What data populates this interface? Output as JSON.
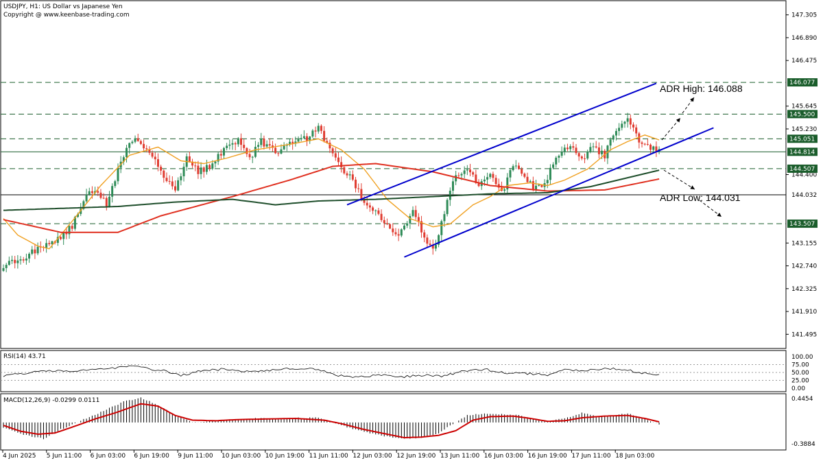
{
  "header": {
    "title": "USDJPY, H1:  US Dollar vs Japanese Yen",
    "copyright": "Copyright @ www.keenbase-trading.com"
  },
  "colors": {
    "bull": "#2e8b57",
    "bear": "#e03c31",
    "ema20": "#f0a020",
    "ema100": "#e03020",
    "ema200": "#1d4d2a",
    "channel": "#0000cc",
    "level": "#1a5d2b",
    "tag_bg": "#1a5d2b",
    "rsi": "#000000",
    "macd_signal": "#cc0000"
  },
  "chart_data": [
    {
      "type": "candlestick",
      "title": "USDJPY, H1:  US Dollar vs Japanese Yen",
      "ylim": [
        141.25,
        147.55
      ],
      "yticks": [
        147.305,
        146.89,
        146.475,
        145.645,
        145.23,
        144.4,
        143.155,
        142.74,
        142.325,
        141.91,
        141.495
      ],
      "x_labels": [
        "4 Jun 2025",
        "5 Jun 11:00",
        "6 Jun 03:00",
        "6 Jun 19:00",
        "9 Jun 11:00",
        "10 Jun 03:00",
        "10 Jun 19:00",
        "11 Jun 11:00",
        "12 Jun 03:00",
        "12 Jun 19:00",
        "13 Jun 11:00",
        "16 Jun 03:00",
        "16 Jun 19:00",
        "17 Jun 11:00",
        "18 Jun 03:00"
      ],
      "close_anchors": [
        [
          0,
          142.75
        ],
        [
          6,
          142.85
        ],
        [
          12,
          143.05
        ],
        [
          18,
          143.2
        ],
        [
          24,
          143.45
        ],
        [
          28,
          143.95
        ],
        [
          32,
          144.15
        ],
        [
          36,
          143.85
        ],
        [
          40,
          144.5
        ],
        [
          45,
          145.05
        ],
        [
          50,
          144.9
        ],
        [
          55,
          144.45
        ],
        [
          60,
          144.15
        ],
        [
          64,
          144.7
        ],
        [
          68,
          144.45
        ],
        [
          72,
          144.55
        ],
        [
          76,
          144.8
        ],
        [
          82,
          145.05
        ],
        [
          86,
          144.7
        ],
        [
          90,
          145.0
        ],
        [
          96,
          144.75
        ],
        [
          100,
          145.0
        ],
        [
          106,
          145.05
        ],
        [
          110,
          145.25
        ],
        [
          116,
          144.65
        ],
        [
          121,
          144.35
        ],
        [
          126,
          143.9
        ],
        [
          132,
          143.6
        ],
        [
          138,
          143.3
        ],
        [
          143,
          143.7
        ],
        [
          147,
          143.3
        ],
        [
          150,
          143.0
        ],
        [
          153,
          143.5
        ],
        [
          157,
          144.3
        ],
        [
          162,
          144.55
        ],
        [
          166,
          144.15
        ],
        [
          170,
          144.45
        ],
        [
          174,
          144.05
        ],
        [
          178,
          144.6
        ],
        [
          182,
          144.3
        ],
        [
          186,
          144.15
        ],
        [
          189,
          144.2
        ],
        [
          193,
          144.75
        ],
        [
          198,
          144.95
        ],
        [
          202,
          144.7
        ],
        [
          206,
          144.9
        ],
        [
          210,
          144.75
        ],
        [
          214,
          145.25
        ],
        [
          218,
          145.4
        ],
        [
          222,
          145.0
        ],
        [
          226,
          144.9
        ],
        [
          229,
          144.85
        ]
      ],
      "levels": [
        {
          "value": 146.077,
          "label": "146.077",
          "style": "dashed",
          "tag": true
        },
        {
          "value": 145.5,
          "label": "145.500",
          "style": "dashed",
          "tag": true
        },
        {
          "value": 145.051,
          "label": "145.051",
          "style": "dashed",
          "tag": true
        },
        {
          "value": 144.814,
          "label": "144.814",
          "style": "solid",
          "tag": true
        },
        {
          "value": 144.507,
          "label": "144.507",
          "style": "dashed",
          "tag": true
        },
        {
          "value": 144.032,
          "label": "144.032",
          "style": "solid-dark",
          "tag": false
        },
        {
          "value": 143.507,
          "label": "143.507",
          "style": "dashed",
          "tag": true
        }
      ],
      "channel": {
        "upper": [
          [
            120,
            143.85
          ],
          [
            228,
            146.06
          ]
        ],
        "lower": [
          [
            140,
            142.9
          ],
          [
            248,
            145.25
          ]
        ],
        "mid_ext": [
          [
            213,
            144.35
          ],
          [
            228,
            144.65
          ]
        ]
      },
      "moving_averages": [
        {
          "name": "ema20",
          "anchors": [
            [
              0,
              143.6
            ],
            [
              5,
              143.3
            ],
            [
              12,
              143.1
            ],
            [
              16,
              143.05
            ],
            [
              24,
              143.55
            ],
            [
              34,
              144.2
            ],
            [
              44,
              144.75
            ],
            [
              54,
              144.9
            ],
            [
              62,
              144.65
            ],
            [
              70,
              144.6
            ],
            [
              78,
              144.7
            ],
            [
              88,
              144.85
            ],
            [
              100,
              144.95
            ],
            [
              110,
              145.05
            ],
            [
              118,
              144.85
            ],
            [
              126,
              144.5
            ],
            [
              134,
              143.95
            ],
            [
              142,
              143.6
            ],
            [
              150,
              143.45
            ],
            [
              156,
              143.5
            ],
            [
              164,
              143.85
            ],
            [
              170,
              144.0
            ],
            [
              176,
              144.2
            ],
            [
              184,
              144.25
            ],
            [
              190,
              144.2
            ],
            [
              196,
              144.3
            ],
            [
              204,
              144.5
            ],
            [
              212,
              144.85
            ],
            [
              218,
              145.0
            ],
            [
              224,
              145.12
            ],
            [
              229,
              145.03
            ]
          ]
        },
        {
          "name": "ema100",
          "anchors": [
            [
              0,
              143.58
            ],
            [
              20,
              143.35
            ],
            [
              40,
              143.35
            ],
            [
              55,
              143.65
            ],
            [
              80,
              144.0
            ],
            [
              100,
              144.3
            ],
            [
              115,
              144.55
            ],
            [
              130,
              144.6
            ],
            [
              150,
              144.45
            ],
            [
              170,
              144.2
            ],
            [
              190,
              144.1
            ],
            [
              210,
              144.12
            ],
            [
              229,
              144.32
            ]
          ]
        },
        {
          "name": "ema200",
          "anchors": [
            [
              0,
              143.75
            ],
            [
              40,
              143.82
            ],
            [
              60,
              143.9
            ],
            [
              80,
              143.95
            ],
            [
              95,
              143.85
            ],
            [
              110,
              143.92
            ],
            [
              130,
              143.95
            ],
            [
              150,
              144.0
            ],
            [
              170,
              144.05
            ],
            [
              190,
              144.07
            ],
            [
              205,
              144.18
            ],
            [
              229,
              144.48
            ]
          ]
        }
      ],
      "annotations": [
        {
          "text": "ADR High: 146.088",
          "value": 146.088
        },
        {
          "text": "ADR Low: 144.031",
          "value": 144.031
        }
      ]
    },
    {
      "type": "line",
      "title": "RSI(14) 43.71",
      "ylim": [
        0,
        100
      ],
      "yticks": [
        100.0,
        75.0,
        50.0,
        25.0,
        0.0
      ],
      "tick_labels": [
        "100.00",
        "75.00",
        "50.00",
        "25.00",
        "0.00"
      ],
      "anchors": [
        [
          0,
          40
        ],
        [
          8,
          48
        ],
        [
          16,
          55
        ],
        [
          24,
          54
        ],
        [
          32,
          60
        ],
        [
          40,
          65
        ],
        [
          44,
          73
        ],
        [
          50,
          62
        ],
        [
          56,
          55
        ],
        [
          62,
          40
        ],
        [
          68,
          53
        ],
        [
          76,
          60
        ],
        [
          84,
          53
        ],
        [
          92,
          57
        ],
        [
          100,
          62
        ],
        [
          106,
          64
        ],
        [
          112,
          55
        ],
        [
          116,
          40
        ],
        [
          124,
          35
        ],
        [
          132,
          42
        ],
        [
          140,
          37
        ],
        [
          148,
          42
        ],
        [
          154,
          38
        ],
        [
          160,
          55
        ],
        [
          168,
          60
        ],
        [
          176,
          48
        ],
        [
          184,
          46
        ],
        [
          190,
          42
        ],
        [
          196,
          58
        ],
        [
          204,
          56
        ],
        [
          212,
          63
        ],
        [
          218,
          58
        ],
        [
          222,
          49
        ],
        [
          229,
          43.71
        ]
      ]
    },
    {
      "type": "bar+line",
      "title": "MACD(12,26,9) -0.0299 0.0111",
      "ylim": [
        -0.3884,
        0.4454
      ],
      "tick_labels": [
        "0.4454",
        "-0.3884"
      ],
      "histogram_anchors": [
        [
          0,
          -0.08
        ],
        [
          8,
          -0.22
        ],
        [
          14,
          -0.28
        ],
        [
          20,
          -0.12
        ],
        [
          28,
          0.05
        ],
        [
          36,
          0.22
        ],
        [
          42,
          0.36
        ],
        [
          48,
          0.42
        ],
        [
          54,
          0.3
        ],
        [
          60,
          0.12
        ],
        [
          66,
          0.0
        ],
        [
          72,
          0.02
        ],
        [
          80,
          0.05
        ],
        [
          88,
          0.07
        ],
        [
          96,
          0.06
        ],
        [
          104,
          0.08
        ],
        [
          110,
          0.08
        ],
        [
          114,
          0.02
        ],
        [
          120,
          -0.08
        ],
        [
          128,
          -0.18
        ],
        [
          136,
          -0.26
        ],
        [
          142,
          -0.28
        ],
        [
          148,
          -0.24
        ],
        [
          152,
          -0.18
        ],
        [
          156,
          -0.05
        ],
        [
          162,
          0.12
        ],
        [
          168,
          0.15
        ],
        [
          174,
          0.14
        ],
        [
          180,
          0.13
        ],
        [
          186,
          0.04
        ],
        [
          190,
          0.02
        ],
        [
          196,
          0.07
        ],
        [
          202,
          0.16
        ],
        [
          208,
          0.1
        ],
        [
          214,
          0.13
        ],
        [
          218,
          0.16
        ],
        [
          222,
          0.09
        ],
        [
          229,
          -0.03
        ]
      ],
      "signal_anchors": [
        [
          0,
          -0.05
        ],
        [
          6,
          -0.15
        ],
        [
          12,
          -0.2
        ],
        [
          18,
          -0.18
        ],
        [
          24,
          -0.08
        ],
        [
          32,
          0.06
        ],
        [
          40,
          0.18
        ],
        [
          48,
          0.32
        ],
        [
          54,
          0.28
        ],
        [
          60,
          0.12
        ],
        [
          66,
          0.04
        ],
        [
          74,
          0.03
        ],
        [
          82,
          0.05
        ],
        [
          92,
          0.06
        ],
        [
          102,
          0.07
        ],
        [
          112,
          0.04
        ],
        [
          118,
          -0.02
        ],
        [
          126,
          -0.12
        ],
        [
          134,
          -0.2
        ],
        [
          140,
          -0.26
        ],
        [
          146,
          -0.25
        ],
        [
          152,
          -0.22
        ],
        [
          158,
          -0.14
        ],
        [
          164,
          0.04
        ],
        [
          170,
          0.1
        ],
        [
          178,
          0.11
        ],
        [
          184,
          0.07
        ],
        [
          190,
          0.02
        ],
        [
          196,
          0.03
        ],
        [
          202,
          0.08
        ],
        [
          210,
          0.11
        ],
        [
          218,
          0.12
        ],
        [
          224,
          0.07
        ],
        [
          229,
          0.0111
        ]
      ]
    }
  ]
}
